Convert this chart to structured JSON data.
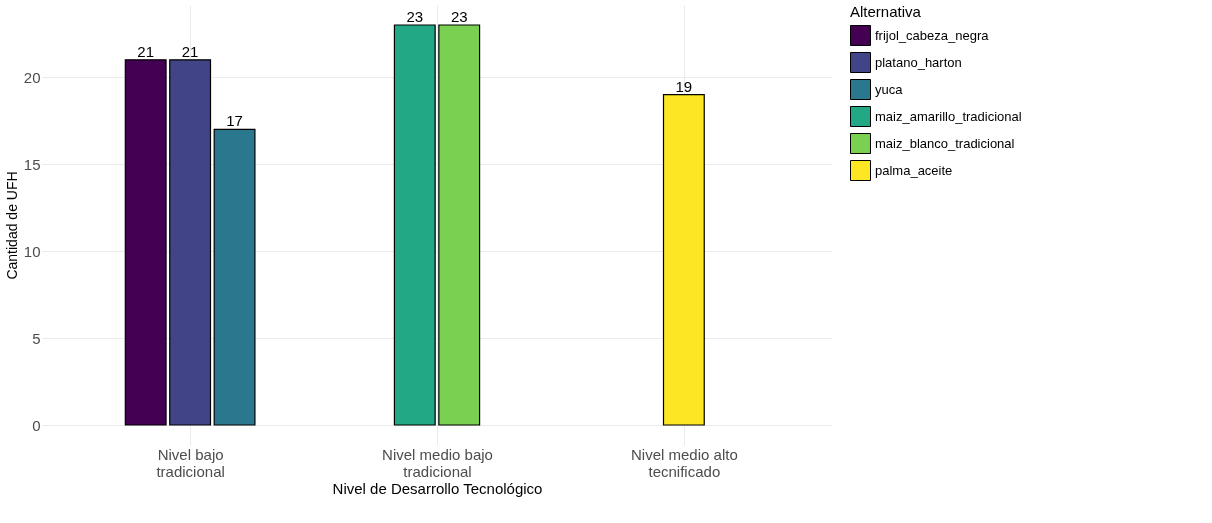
{
  "chart_data": {
    "type": "bar",
    "xlabel": "Nivel de Desarrollo Tecnológico",
    "ylabel": "Cantidad de UFH",
    "legend_title": "Alternativa",
    "legend": "right",
    "categories": [
      "Nivel bajo\ntradicional",
      "Nivel medio bajo\ntradicional",
      "Nivel medio alto\ntecnificado"
    ],
    "series": [
      {
        "name": "frijol_cabeza_negra",
        "color": "#440154",
        "values": [
          21,
          null,
          null
        ]
      },
      {
        "name": "platano_harton",
        "color": "#414487",
        "values": [
          21,
          null,
          null
        ]
      },
      {
        "name": "yuca",
        "color": "#2a788e",
        "values": [
          17,
          null,
          null
        ]
      },
      {
        "name": "maiz_amarillo_tradicional",
        "color": "#22a884",
        "values": [
          null,
          23,
          null
        ]
      },
      {
        "name": "maiz_blanco_tradicional",
        "color": "#7ad151",
        "values": [
          null,
          23,
          null
        ]
      },
      {
        "name": "palma_aceite",
        "color": "#fde725",
        "values": [
          null,
          null,
          19
        ]
      }
    ],
    "ylim": [
      -1.15,
      24.15
    ],
    "yticks": [
      0,
      5,
      10,
      15,
      20
    ],
    "grid": true,
    "data_labels": true
  }
}
